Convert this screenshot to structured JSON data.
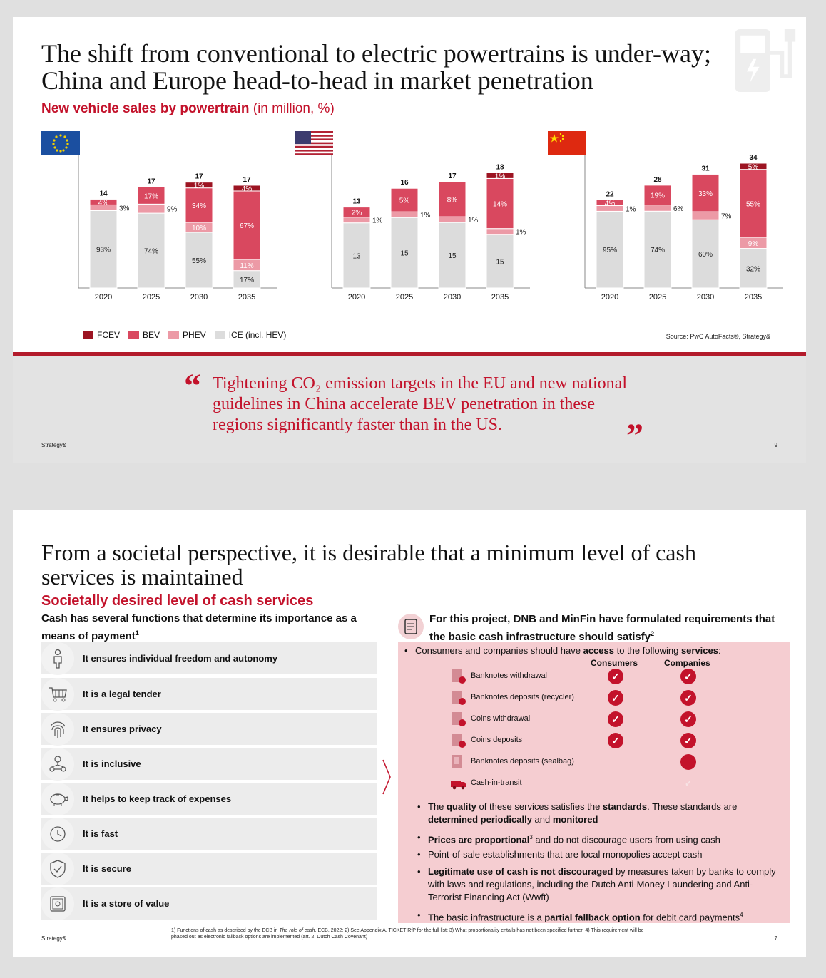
{
  "slide1": {
    "title": "The shift from conventional to electric powertrains is under-way; China and Europe head-to-head in market penetration",
    "subtitle": "New vehicle sales by powertrain",
    "subtitle_unit": "(in million, %)",
    "legend": [
      "FCEV",
      "BEV",
      "PHEV",
      "ICE (incl. HEV)"
    ],
    "source": "Source: PwC AutoFacts®, Strategy&",
    "quote": "Tightening CO₂ emission targets in the EU and new national guidelines in China accelerate BEV penetration in these regions significantly faster than in the US.",
    "quote_open": "“",
    "quote_close": "”",
    "brand": "Strategy&",
    "page": "9",
    "colors": {
      "FCEV": "#9c1422",
      "BEV": "#d9485f",
      "PHEV": "#ec9aa6",
      "ICE": "#dcdcdc"
    }
  },
  "chart_data": [
    {
      "type": "bar",
      "region": "EU flag",
      "categories": [
        "2020",
        "2025",
        "2030",
        "2035"
      ],
      "totals": [
        14,
        17,
        17,
        17
      ],
      "series": [
        {
          "name": "ICE (incl. HEV)",
          "values": [
            93,
            74,
            55,
            17
          ]
        },
        {
          "name": "PHEV",
          "values": [
            3,
            9,
            10,
            11
          ]
        },
        {
          "name": "BEV",
          "values": [
            4,
            17,
            34,
            67
          ]
        },
        {
          "name": "FCEV",
          "values": [
            0,
            0,
            1,
            4
          ]
        }
      ],
      "labels": [
        {
          "ICE": "93%",
          "PHEV": "3%",
          "BEV": "4%",
          "FCEV": ""
        },
        {
          "ICE": "74%",
          "PHEV": "9%",
          "BEV": "17%",
          "FCEV": ""
        },
        {
          "ICE": "55%",
          "PHEV": "10%",
          "BEV": "34%",
          "FCEV": "1%"
        },
        {
          "ICE": "17%",
          "PHEV": "11%",
          "BEV": "67%",
          "FCEV": "4%"
        }
      ]
    },
    {
      "type": "bar",
      "region": "US flag",
      "categories": [
        "2020",
        "2025",
        "2030",
        "2035"
      ],
      "totals": [
        13,
        16,
        17,
        18
      ],
      "series": [
        {
          "name": "ICE (incl. HEV)",
          "values": [
            13,
            15,
            15,
            15
          ]
        },
        {
          "name": "PHEV",
          "values": [
            1,
            1,
            1,
            1
          ]
        },
        {
          "name": "BEV",
          "values": [
            2,
            5,
            8,
            14
          ]
        },
        {
          "name": "FCEV",
          "values": [
            0,
            0,
            0,
            1
          ]
        }
      ],
      "labels": [
        {
          "ICE": "13",
          "PHEV": "1%",
          "BEV": "2%",
          "FCEV": ""
        },
        {
          "ICE": "15",
          "PHEV": "1%",
          "BEV": "5%",
          "FCEV": ""
        },
        {
          "ICE": "15",
          "PHEV": "1%",
          "BEV": "8%",
          "FCEV": ""
        },
        {
          "ICE": "15",
          "PHEV": "1%",
          "BEV": "14%",
          "FCEV": "1%"
        }
      ]
    },
    {
      "type": "bar",
      "region": "China flag",
      "categories": [
        "2020",
        "2025",
        "2030",
        "2035"
      ],
      "totals": [
        22,
        28,
        31,
        34
      ],
      "series": [
        {
          "name": "ICE (incl. HEV)",
          "values": [
            95,
            74,
            60,
            32
          ]
        },
        {
          "name": "PHEV",
          "values": [
            1,
            6,
            7,
            9
          ]
        },
        {
          "name": "BEV",
          "values": [
            4,
            19,
            33,
            55
          ]
        },
        {
          "name": "FCEV",
          "values": [
            0,
            0,
            0,
            5
          ]
        }
      ],
      "labels": [
        {
          "ICE": "95%",
          "PHEV": "1%",
          "BEV": "4%",
          "FCEV": ""
        },
        {
          "ICE": "74%",
          "PHEV": "6%",
          "BEV": "19%",
          "FCEV": ""
        },
        {
          "ICE": "60%",
          "PHEV": "7%",
          "BEV": "33%",
          "FCEV": ""
        },
        {
          "ICE": "32%",
          "PHEV": "9%",
          "BEV": "55%",
          "FCEV": "5%"
        }
      ]
    }
  ],
  "slide2": {
    "title": "From a societal perspective, it is desirable that a minimum level of cash services is maintained",
    "subtitle": "Societally desired level of cash services",
    "left_heading": "Cash has several functions that determine its importance as a means of payment",
    "left_heading_sup": "1",
    "functions": [
      {
        "label": "It ensures individual freedom and autonomy",
        "icon": "person-icon"
      },
      {
        "label": "It is a legal tender",
        "icon": "cart-icon"
      },
      {
        "label": "It ensures privacy",
        "icon": "fingerprint-icon"
      },
      {
        "label": "It is inclusive",
        "icon": "people-network-icon"
      },
      {
        "label": "It helps to keep track of expenses",
        "icon": "piggy-bank-icon"
      },
      {
        "label": "It is fast",
        "icon": "clock-icon"
      },
      {
        "label": "It is secure",
        "icon": "shield-icon"
      },
      {
        "label": "It is a store of value",
        "icon": "safe-icon"
      }
    ],
    "right_heading": "For this project, DNB and MinFin have formulated requirements that the basic cash infrastructure should satisfy",
    "right_heading_sup": "2",
    "access_intro_pre": "Consumers and companies should have ",
    "access_intro_b1": "access",
    "access_intro_mid": " to the following ",
    "access_intro_b2": "services",
    "access_intro_post": ":",
    "col_consumers": "Consumers",
    "col_companies": "Companies",
    "services": [
      {
        "label": "Banknotes withdrawal",
        "consumers": "check",
        "companies": "check"
      },
      {
        "label": "Banknotes deposits (recycler)",
        "consumers": "check",
        "companies": "check"
      },
      {
        "label": "Coins withdrawal",
        "consumers": "check",
        "companies": "check"
      },
      {
        "label": "Coins deposits",
        "consumers": "check",
        "companies": "check"
      },
      {
        "label": "Banknotes deposits (sealbag)",
        "consumers": "none",
        "companies": "dot"
      },
      {
        "label": "Cash-in-transit",
        "consumers": "none",
        "companies": "faint"
      }
    ],
    "check_glyph": "✓",
    "bullets": {
      "b1_pre": "The ",
      "b1_b1": "quality",
      "b1_mid": " of these services satisfies the ",
      "b1_b2": "standards",
      "b1_mid2": ". These standards are ",
      "b1_b3": "determined periodically",
      "b1_mid3": " and ",
      "b1_b4": "monitored",
      "b2_b": "Prices are proportional",
      "b2_sup": "3",
      "b2_post": " and do not discourage users from using cash",
      "b3": "Point-of-sale establishments that are local monopolies accept cash",
      "b4_b": "Legitimate use of cash is not discouraged",
      "b4_post": " by measures taken by banks to comply with laws and regulations, including the Dutch Anti-Money Laundering and Anti-Terrorist Financing Act (Wwft)",
      "b5_pre": "The basic infrastructure is a ",
      "b5_b": "partial fallback option",
      "b5_post": " for debit card payments",
      "b5_sup": "4"
    },
    "footnote_pre": "1) Functions of cash as described by the ECB in ",
    "footnote_i": "The role of cash",
    "footnote_post": ", ECB, 2022; 2) See Appendix A, TICKET RfP for the full list; 3) What proportionality entails has not been specified further; 4) This requirement will be phased out as electronic fallback options are implemented (art. 2, Dutch Cash Covenant)",
    "brand": "Strategy&",
    "page": "7"
  }
}
